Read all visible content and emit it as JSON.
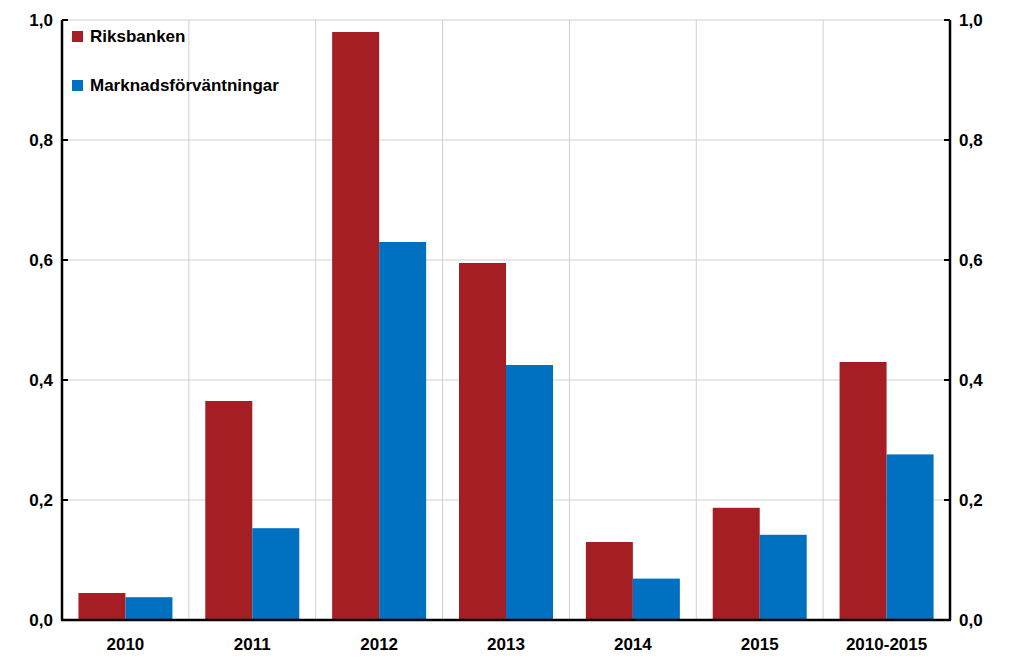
{
  "chart_data": {
    "type": "bar",
    "categories": [
      "2010",
      "2011",
      "2012",
      "2013",
      "2014",
      "2015",
      "2010-2015"
    ],
    "series": [
      {
        "name": "Riksbanken",
        "color": "#a51e24",
        "values": [
          0.045,
          0.365,
          0.98,
          0.595,
          0.13,
          0.187,
          0.43
        ]
      },
      {
        "name": "Marknadsförväntningar",
        "color": "#0070c0",
        "values": [
          0.038,
          0.153,
          0.63,
          0.425,
          0.069,
          0.142,
          0.276
        ]
      }
    ],
    "ylim": [
      0,
      1
    ],
    "yticks": [
      {
        "value": 0,
        "label": "0,0"
      },
      {
        "value": 0.2,
        "label": "0,2"
      },
      {
        "value": 0.4,
        "label": "0,4"
      },
      {
        "value": 0.6,
        "label": "0,6"
      },
      {
        "value": 0.8,
        "label": "0,8"
      },
      {
        "value": 1,
        "label": "1,0"
      }
    ],
    "grid": true,
    "legend": "upper left"
  }
}
